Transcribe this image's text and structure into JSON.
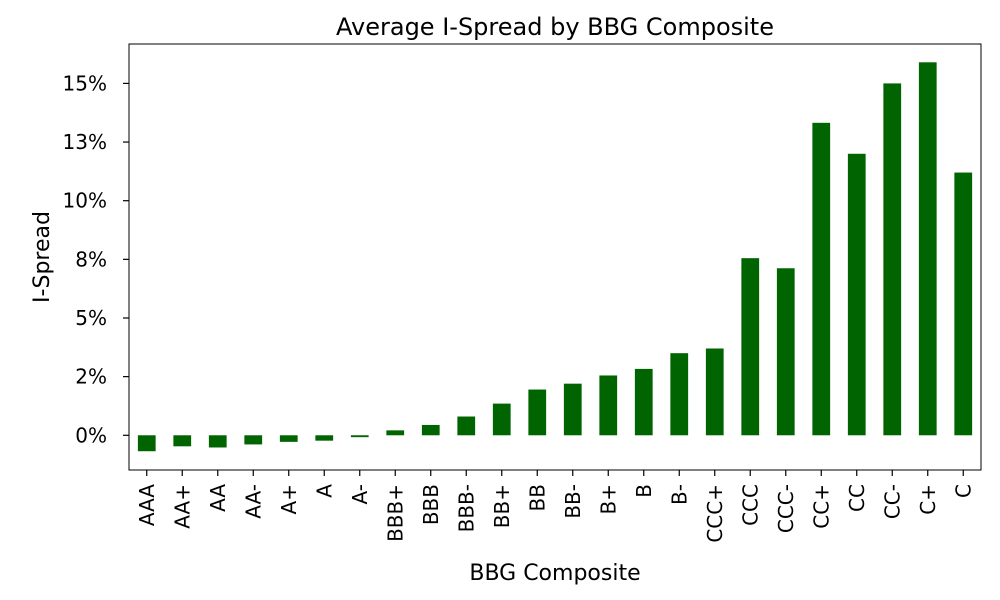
{
  "chart_data": {
    "type": "bar",
    "title": "Average I-Spread by BBG Composite",
    "xlabel": "BBG Composite",
    "ylabel": "I-Spread",
    "categories": [
      "AAA",
      "AA+",
      "AA",
      "AA-",
      "A+",
      "A",
      "A-",
      "BBB+",
      "BBB",
      "BBB-",
      "BB+",
      "BB",
      "BB-",
      "B+",
      "B",
      "B-",
      "CCC+",
      "CCC",
      "CCC-",
      "CC+",
      "CC",
      "CC-",
      "C+",
      "C"
    ],
    "values": [
      -0.0068,
      -0.0047,
      -0.0052,
      -0.0039,
      -0.0028,
      -0.0023,
      -0.0008,
      0.0021,
      0.0044,
      0.008,
      0.0135,
      0.0195,
      0.022,
      0.0255,
      0.0283,
      0.035,
      0.037,
      0.0755,
      0.0712,
      0.1332,
      0.12,
      0.15,
      0.159,
      0.112
    ],
    "yticks": [
      0,
      0.025,
      0.05,
      0.075,
      0.1,
      0.125,
      0.15
    ],
    "ytick_labels": [
      "0%",
      "2%",
      "5%",
      "8%",
      "10%",
      "13%",
      "15%"
    ],
    "ylim": [
      -0.0148,
      0.1668
    ],
    "color": "#006400",
    "grid": false,
    "legend": "none"
  }
}
